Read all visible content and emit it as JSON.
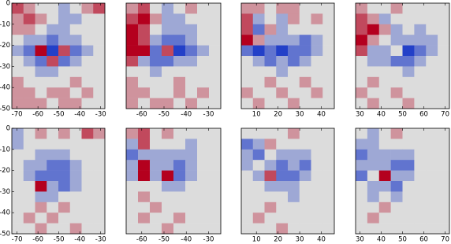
{
  "chart_data": [
    {
      "type": "heatmap",
      "xlim": [
        -72.5,
        -28
      ],
      "ylim": [
        -50,
        0
      ],
      "xticks": [
        -70,
        -60,
        -50,
        -40,
        -30
      ],
      "yticks": [
        0,
        -10,
        -20,
        -30,
        -40,
        -50
      ],
      "vlim": [
        -3,
        3
      ],
      "colors": [
        "#2340c8",
        "#dcdcdc",
        "#b4001e"
      ],
      "values": [
        [
          2,
          1,
          0,
          0,
          -1,
          0,
          1,
          2
        ],
        [
          1,
          2,
          1,
          0,
          -1,
          -1,
          0,
          0
        ],
        [
          1,
          1,
          0,
          -1,
          -1,
          0,
          0,
          0
        ],
        [
          0,
          -1,
          -1,
          -2,
          -1,
          -1,
          0,
          0
        ],
        [
          -1,
          -2,
          3,
          -3,
          2,
          -2,
          -1,
          0
        ],
        [
          0,
          -1,
          -2,
          2,
          -2,
          -1,
          0,
          0
        ],
        [
          0,
          0,
          -1,
          -1,
          0,
          0,
          0,
          0
        ],
        [
          1,
          0,
          0,
          0,
          0,
          1,
          0,
          0
        ],
        [
          1,
          1,
          0,
          1,
          1,
          0,
          1,
          0
        ],
        [
          1,
          1,
          1,
          0,
          1,
          1,
          0,
          0
        ]
      ]
    },
    {
      "type": "heatmap",
      "xlim": [
        -67,
        -24.5
      ],
      "ylim": [
        -50,
        0
      ],
      "xticks": [
        -60,
        -50,
        -40,
        -30
      ],
      "vlim": [
        -3,
        3
      ],
      "colors": [
        "#2340c8",
        "#dcdcdc",
        "#b4001e"
      ],
      "values": [
        [
          1,
          2,
          0,
          -1,
          0,
          1,
          0,
          0
        ],
        [
          2,
          3,
          1,
          -1,
          -1,
          0,
          0,
          0
        ],
        [
          3,
          2,
          0,
          -1,
          -1,
          -1,
          0,
          0
        ],
        [
          3,
          2,
          -1,
          -2,
          -2,
          -1,
          0,
          0
        ],
        [
          3,
          3,
          -2,
          2,
          -3,
          -2,
          -1,
          0
        ],
        [
          2,
          -1,
          -2,
          -2,
          -1,
          -1,
          0,
          0
        ],
        [
          0,
          0,
          -1,
          0,
          0,
          0,
          0,
          0
        ],
        [
          1,
          0,
          0,
          0,
          1,
          0,
          0,
          0
        ],
        [
          1,
          1,
          0,
          0,
          1,
          0,
          1,
          0
        ],
        [
          1,
          0,
          1,
          1,
          0,
          1,
          0,
          0
        ]
      ]
    },
    {
      "type": "heatmap",
      "xlim": [
        3,
        46
      ],
      "ylim": [
        -50,
        0
      ],
      "xticks": [
        10,
        20,
        30,
        40
      ],
      "vlim": [
        -3,
        3
      ],
      "colors": [
        "#2340c8",
        "#dcdcdc",
        "#b4001e"
      ],
      "values": [
        [
          1,
          1,
          0,
          1,
          1,
          0,
          0,
          0
        ],
        [
          2,
          -1,
          0,
          -1,
          1,
          0,
          1,
          0
        ],
        [
          2,
          -2,
          1,
          -1,
          0,
          0,
          0,
          0
        ],
        [
          3,
          1,
          -1,
          -1,
          -1,
          -2,
          -1,
          0
        ],
        [
          -2,
          -3,
          -2,
          -3,
          -2,
          -2,
          -1,
          0
        ],
        [
          0,
          -1,
          -2,
          -1,
          -2,
          -1,
          0,
          0
        ],
        [
          0,
          0,
          0,
          -1,
          0,
          0,
          0,
          0
        ],
        [
          0,
          0,
          1,
          0,
          0,
          1,
          0,
          0
        ],
        [
          1,
          0,
          0,
          1,
          0,
          0,
          1,
          0
        ],
        [
          0,
          1,
          0,
          0,
          1,
          0,
          0,
          0
        ]
      ]
    },
    {
      "type": "heatmap",
      "xlim": [
        28,
        72
      ],
      "ylim": [
        -50,
        0
      ],
      "xticks": [
        30,
        40,
        50,
        60,
        70
      ],
      "vlim": [
        -3,
        3
      ],
      "colors": [
        "#2340c8",
        "#dcdcdc",
        "#b4001e"
      ],
      "values": [
        [
          1,
          0,
          0,
          1,
          0,
          0,
          0,
          0
        ],
        [
          2,
          1,
          -1,
          0,
          0,
          0,
          0,
          0
        ],
        [
          2,
          3,
          1,
          -1,
          0,
          -1,
          0,
          0
        ],
        [
          3,
          1,
          0,
          -1,
          -1,
          -1,
          -1,
          0
        ],
        [
          2,
          -1,
          -1,
          0,
          -3,
          -2,
          -1,
          0
        ],
        [
          0,
          -1,
          -1,
          -2,
          -2,
          -1,
          0,
          0
        ],
        [
          0,
          0,
          0,
          0,
          -1,
          0,
          0,
          0
        ],
        [
          0,
          1,
          0,
          0,
          0,
          0,
          0,
          0
        ],
        [
          1,
          0,
          0,
          1,
          0,
          0,
          0,
          0
        ],
        [
          0,
          1,
          0,
          0,
          1,
          0,
          0,
          0
        ]
      ]
    },
    {
      "type": "heatmap",
      "xlim": [
        -72.5,
        -28
      ],
      "ylim": [
        -50,
        0
      ],
      "xticks": [
        -70,
        -60,
        -50,
        -40,
        -30
      ],
      "yticks": [
        0,
        -10,
        -20,
        -30,
        -40,
        -50
      ],
      "vlim": [
        -3,
        3
      ],
      "colors": [
        "#2340c8",
        "#dcdcdc",
        "#b4001e"
      ],
      "values": [
        [
          -1,
          0,
          1,
          0,
          1,
          0,
          2,
          1
        ],
        [
          -1,
          0,
          0,
          0,
          0,
          0,
          0,
          0
        ],
        [
          0,
          0,
          -1,
          -1,
          -1,
          0,
          0,
          0
        ],
        [
          0,
          -1,
          -1,
          -2,
          -2,
          -1,
          0,
          0
        ],
        [
          0,
          -1,
          -2,
          -2,
          -2,
          -1,
          0,
          0
        ],
        [
          0,
          0,
          3,
          -1,
          -2,
          -1,
          0,
          0
        ],
        [
          0,
          0,
          -1,
          -1,
          0,
          0,
          0,
          0
        ],
        [
          0,
          0,
          1,
          0,
          1,
          0,
          0,
          0
        ],
        [
          0,
          1,
          0,
          1,
          0,
          0,
          0,
          0
        ],
        [
          0,
          0,
          1,
          0,
          0,
          1,
          0,
          0
        ]
      ]
    },
    {
      "type": "heatmap",
      "xlim": [
        -67,
        -24.5
      ],
      "ylim": [
        -50,
        0
      ],
      "xticks": [
        -60,
        -50,
        -40,
        -30
      ],
      "vlim": [
        -3,
        3
      ],
      "colors": [
        "#2340c8",
        "#dcdcdc",
        "#b4001e"
      ],
      "values": [
        [
          1,
          2,
          0,
          1,
          0,
          0,
          0,
          0
        ],
        [
          -1,
          2,
          0,
          0,
          0,
          -1,
          0,
          0
        ],
        [
          -2,
          -1,
          -1,
          -1,
          -1,
          -1,
          0,
          0
        ],
        [
          -1,
          3,
          -1,
          -1,
          -2,
          -1,
          0,
          0
        ],
        [
          -1,
          3,
          -1,
          3,
          -2,
          -1,
          0,
          0
        ],
        [
          0,
          0,
          0,
          -1,
          -1,
          0,
          0,
          0
        ],
        [
          0,
          1,
          0,
          0,
          0,
          0,
          0,
          0
        ],
        [
          0,
          0,
          1,
          0,
          0,
          0,
          0,
          0
        ],
        [
          0,
          1,
          0,
          0,
          1,
          0,
          0,
          0
        ],
        [
          0,
          0,
          0,
          1,
          0,
          0,
          0,
          0
        ]
      ]
    },
    {
      "type": "heatmap",
      "xlim": [
        3,
        46
      ],
      "ylim": [
        -50,
        0
      ],
      "xticks": [
        10,
        20,
        30,
        40
      ],
      "vlim": [
        -3,
        3
      ],
      "colors": [
        "#2340c8",
        "#dcdcdc",
        "#b4001e"
      ],
      "values": [
        [
          0,
          0,
          0,
          0,
          1,
          0,
          0,
          0
        ],
        [
          -2,
          -1,
          1,
          0,
          0,
          0,
          0,
          0
        ],
        [
          -1,
          -2,
          0,
          -1,
          -1,
          -1,
          0,
          0
        ],
        [
          -1,
          0,
          -1,
          -2,
          -1,
          -2,
          0,
          0
        ],
        [
          0,
          -1,
          2,
          -2,
          -2,
          -1,
          0,
          0
        ],
        [
          0,
          0,
          -1,
          -1,
          -1,
          0,
          0,
          0
        ],
        [
          0,
          0,
          0,
          0,
          -1,
          0,
          0,
          0
        ],
        [
          0,
          0,
          1,
          0,
          0,
          0,
          0,
          0
        ],
        [
          0,
          1,
          0,
          0,
          0,
          0,
          0,
          0
        ],
        [
          0,
          0,
          0,
          1,
          0,
          0,
          0,
          0
        ]
      ]
    },
    {
      "type": "heatmap",
      "xlim": [
        28,
        72
      ],
      "ylim": [
        -50,
        0
      ],
      "xticks": [
        30,
        40,
        50,
        60,
        70
      ],
      "vlim": [
        -3,
        3
      ],
      "colors": [
        "#2340c8",
        "#dcdcdc",
        "#b4001e"
      ],
      "values": [
        [
          0,
          -1,
          0,
          1,
          0,
          0,
          0,
          0
        ],
        [
          -1,
          -1,
          0,
          0,
          0,
          0,
          0,
          0
        ],
        [
          -2,
          -1,
          -1,
          -1,
          -1,
          0,
          0,
          0
        ],
        [
          -1,
          -1,
          -1,
          -2,
          -2,
          0,
          0,
          0
        ],
        [
          -2,
          0,
          3,
          -1,
          -1,
          0,
          0,
          0
        ],
        [
          0,
          -1,
          -1,
          -2,
          0,
          0,
          0,
          0
        ],
        [
          0,
          -1,
          0,
          -1,
          0,
          0,
          0,
          0
        ],
        [
          0,
          0,
          1,
          0,
          0,
          0,
          0,
          0
        ],
        [
          0,
          1,
          0,
          0,
          0,
          0,
          0,
          0
        ],
        [
          0,
          0,
          0,
          0,
          0,
          0,
          0,
          0
        ]
      ]
    }
  ]
}
